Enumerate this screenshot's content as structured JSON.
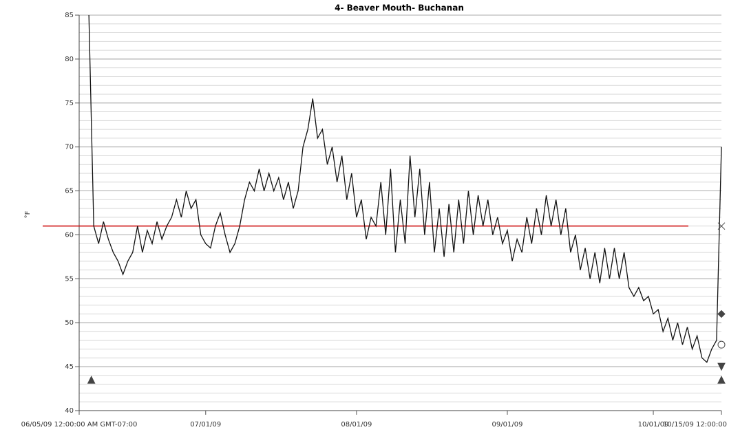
{
  "chart_data": {
    "type": "line",
    "title": "4- Beaver Mouth- Buchanan",
    "y_label": "°F",
    "xlim": [
      0,
      132
    ],
    "xticks": [
      {
        "value": 0,
        "label": "06/05/09 12:00:00 AM GMT-07:00"
      },
      {
        "value": 26,
        "label": "07/01/09"
      },
      {
        "value": 57,
        "label": "08/01/09"
      },
      {
        "value": 88,
        "label": "09/01/09"
      },
      {
        "value": 118,
        "label": "10/01/09"
      },
      {
        "value": 132,
        "label": "10/15/09 12:00:00"
      }
    ],
    "ylim": [
      40,
      85
    ],
    "yticks": [
      40,
      45,
      50,
      55,
      60,
      65,
      70,
      75,
      80,
      85
    ],
    "grid": true,
    "minor_grid_step": 1,
    "series": [
      {
        "color": "#111111",
        "x": [
          2,
          3,
          4,
          5,
          6,
          7,
          8,
          9,
          10,
          11,
          12,
          13,
          14,
          15,
          16,
          17,
          18,
          19,
          20,
          21,
          22,
          23,
          24,
          25,
          26,
          27,
          28,
          29,
          30,
          31,
          32,
          33,
          34,
          35,
          36,
          37,
          38,
          39,
          40,
          41,
          42,
          43,
          44,
          45,
          46,
          47,
          48,
          49,
          50,
          51,
          52,
          53,
          54,
          55,
          56,
          57,
          58,
          59,
          60,
          61,
          62,
          63,
          64,
          65,
          66,
          67,
          68,
          69,
          70,
          71,
          72,
          73,
          74,
          75,
          76,
          77,
          78,
          79,
          80,
          81,
          82,
          83,
          84,
          85,
          86,
          87,
          88,
          89,
          90,
          91,
          92,
          93,
          94,
          95,
          96,
          97,
          98,
          99,
          100,
          101,
          102,
          103,
          104,
          105,
          106,
          107,
          108,
          109,
          110,
          111,
          112,
          113,
          114,
          115,
          116,
          117,
          118,
          119,
          120,
          121,
          122,
          123,
          124,
          125,
          126,
          127,
          128,
          129,
          130,
          131,
          132
        ],
        "values": [
          85,
          61,
          59,
          61.5,
          59.5,
          58,
          57,
          55.5,
          57,
          58,
          61,
          58,
          60.5,
          59,
          61.5,
          59.5,
          61,
          62,
          64,
          62,
          65,
          63,
          64,
          60,
          59,
          58.5,
          61,
          62.5,
          60,
          58,
          59,
          61,
          64,
          66,
          65,
          67.5,
          65,
          67,
          65,
          66.5,
          64,
          66,
          63,
          65,
          70,
          72,
          75.5,
          71,
          72,
          68,
          70,
          66,
          69,
          64,
          67,
          62,
          64,
          59.5,
          62,
          61,
          66,
          60,
          67.5,
          58,
          64,
          59,
          69,
          62,
          67.5,
          60,
          66,
          58,
          63,
          57.5,
          63.5,
          58,
          64,
          59,
          65,
          60,
          64.5,
          61,
          64,
          60,
          62,
          59,
          60.5,
          57,
          59.5,
          58,
          62,
          59,
          63,
          60,
          64.5,
          61,
          64,
          60,
          63,
          58,
          60,
          56,
          58.5,
          55,
          58,
          54.5,
          58.5,
          55,
          58.5,
          55,
          58,
          54,
          53,
          54,
          52.5,
          53,
          51,
          51.5,
          49,
          50.5,
          48,
          50,
          47.5,
          49.5,
          47,
          48.5,
          46,
          45.5,
          47,
          48,
          70
        ]
      }
    ],
    "reference_line": {
      "value": 61,
      "color": "#cc0000"
    },
    "markers": [
      {
        "shape": "triangle-up",
        "x": 2.5,
        "value": 43.5
      },
      {
        "shape": "cross",
        "x": 132,
        "value": 61
      },
      {
        "shape": "diamond",
        "x": 132,
        "value": 51
      },
      {
        "shape": "circle",
        "x": 132,
        "value": 47.5
      },
      {
        "shape": "triangle-down",
        "x": 132,
        "value": 45
      },
      {
        "shape": "triangle-up",
        "x": 132,
        "value": 43.5
      }
    ]
  }
}
